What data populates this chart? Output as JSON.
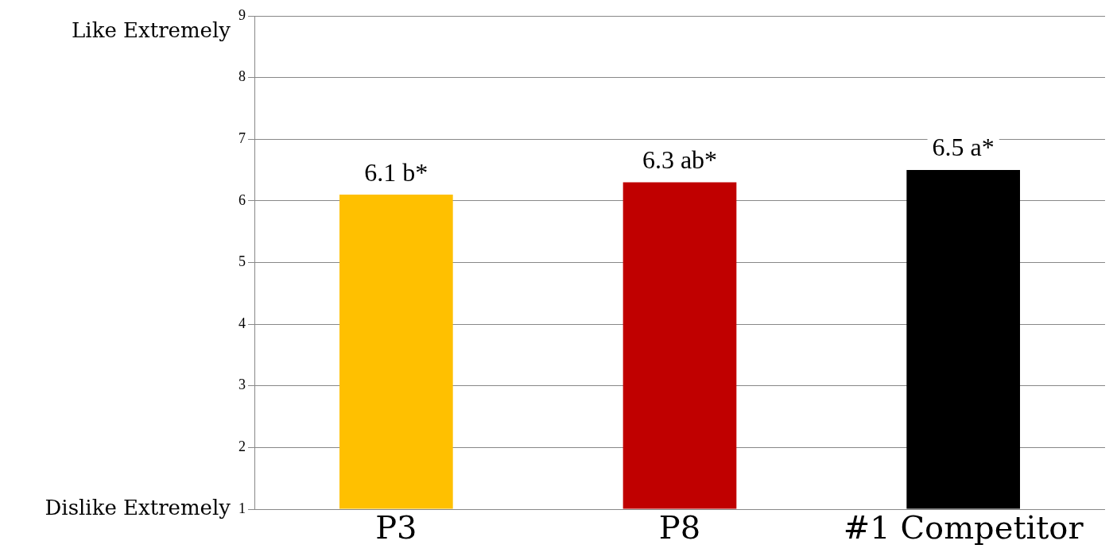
{
  "chart_data": {
    "type": "bar",
    "categories": [
      "P3",
      "P8",
      "#1 Competitor"
    ],
    "values": [
      6.1,
      6.3,
      6.5
    ],
    "colors": [
      "#ffc000",
      "#c00000",
      "#000000"
    ],
    "value_labels": [
      "6.1 b*",
      "6.3 ab*",
      "6.5 a*"
    ],
    "ylim": [
      1,
      9
    ],
    "yticks": [
      1,
      2,
      3,
      4,
      5,
      6,
      7,
      8,
      9
    ],
    "grid": "y",
    "legend": false,
    "annotations": [
      "Like Extremely",
      "Dislike Extremely"
    ]
  }
}
